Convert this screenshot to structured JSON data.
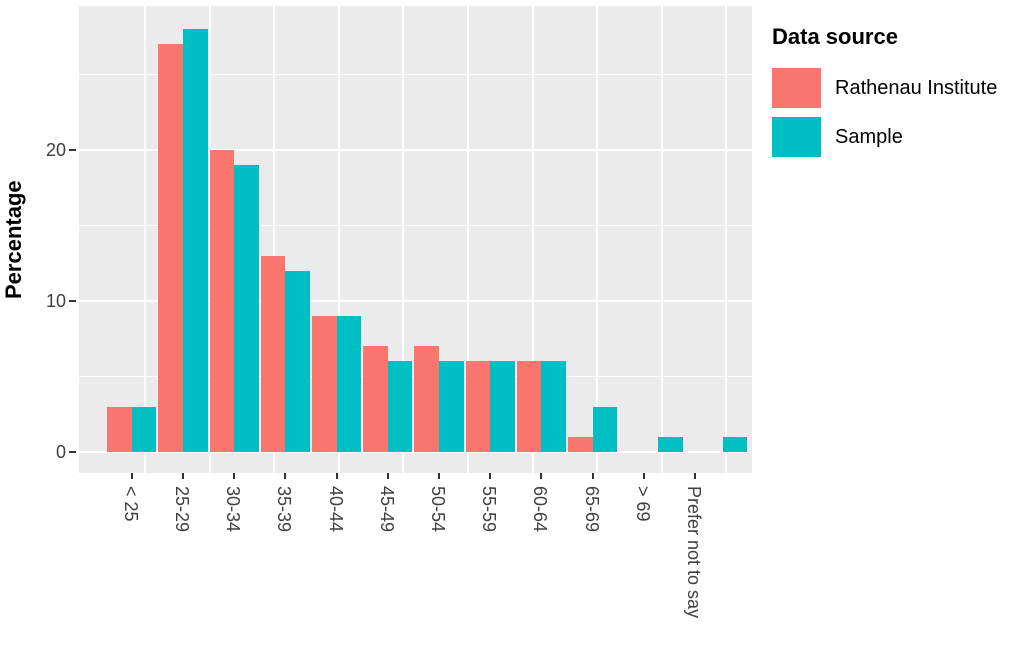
{
  "chart_data": {
    "type": "bar",
    "title": "",
    "xlabel": "",
    "ylabel": "Percentage",
    "categories": [
      "< 25",
      "25-29",
      "30-34",
      "35-39",
      "40-44",
      "45-49",
      "50-54",
      "55-59",
      "60-64",
      "65-69",
      "> 69",
      "Prefer not to say"
    ],
    "series": [
      {
        "name": "Rathenau Institute",
        "color": "#F8766D",
        "values": [
          3,
          27,
          20,
          13,
          9,
          7,
          7,
          6,
          6,
          1,
          0,
          0
        ]
      },
      {
        "name": "Sample",
        "color": "#00BFC4",
        "values": [
          3,
          28,
          19,
          12,
          9,
          6,
          6,
          6,
          6,
          3,
          1,
          1
        ]
      }
    ],
    "y_ticks": [
      0,
      10,
      20
    ],
    "ylim": [
      0,
      29.6
    ],
    "legend_title": "Data source",
    "legend_position": "right",
    "grid": "on",
    "panel_background": "#EBEBEB",
    "gridline_color": "#FFFFFF",
    "tick_label_color": "#404040"
  }
}
